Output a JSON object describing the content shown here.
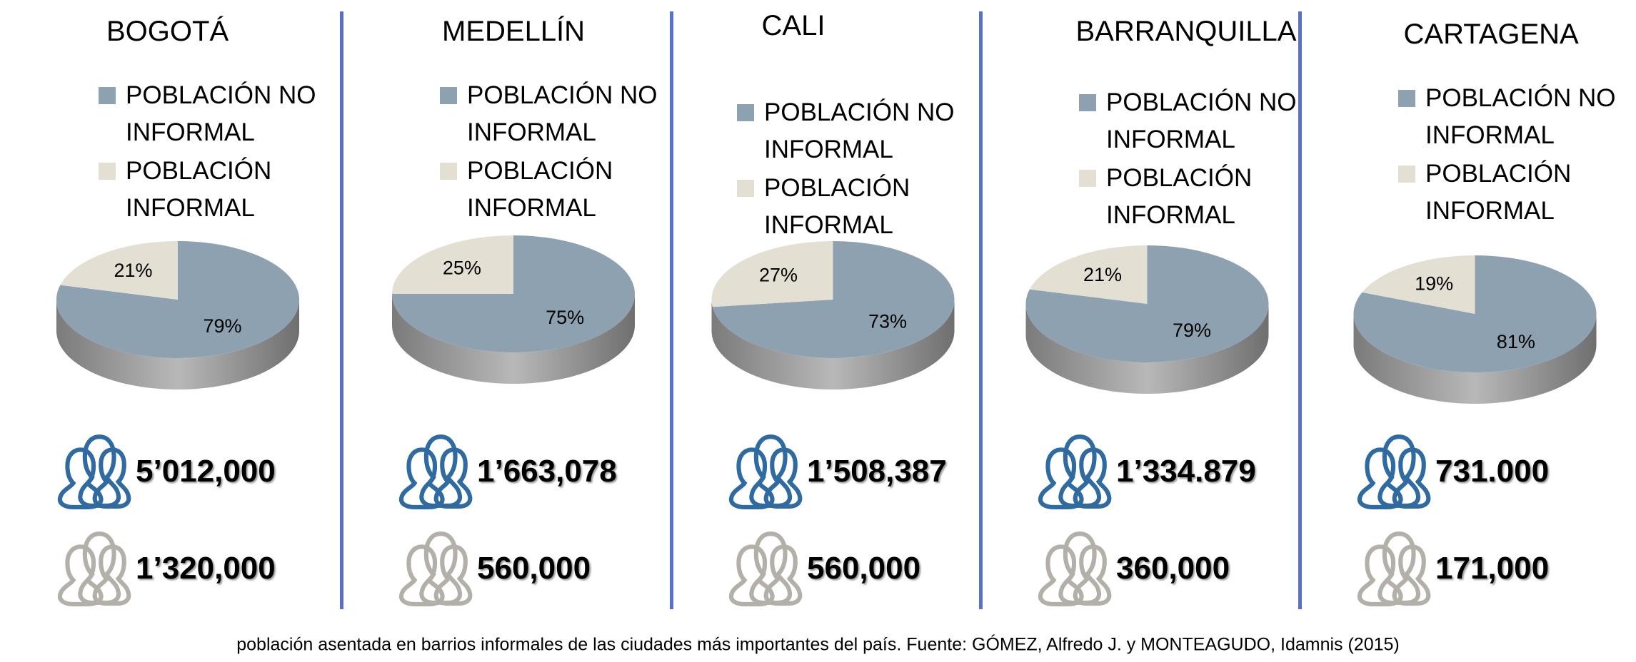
{
  "chart_data": [
    {
      "type": "pie",
      "title": "BOGOTÁ",
      "categories": [
        "POBLACIÓN NO INFORMAL",
        "POBLACIÓN INFORMAL"
      ],
      "values": [
        79,
        21
      ],
      "value_labels": [
        "79%",
        "21%"
      ],
      "colors": [
        "#8da1b0",
        "#e3e0d3"
      ]
    },
    {
      "type": "pie",
      "title": "MEDELLÍN",
      "categories": [
        "POBLACIÓN NO INFORMAL",
        "POBLACIÓN INFORMAL"
      ],
      "values": [
        75,
        25
      ],
      "value_labels": [
        "75%",
        "25%"
      ],
      "colors": [
        "#8da1b0",
        "#e3e0d3"
      ]
    },
    {
      "type": "pie",
      "title": "CALI",
      "categories": [
        "POBLACIÓN NO INFORMAL",
        "POBLACIÓN INFORMAL"
      ],
      "values": [
        73,
        27
      ],
      "value_labels": [
        "73%",
        "27%"
      ],
      "colors": [
        "#8da1b0",
        "#e3e0d3"
      ]
    },
    {
      "type": "pie",
      "title": "BARRANQUILLA",
      "categories": [
        "POBLACIÓN NO INFORMAL",
        "POBLACIÓN INFORMAL"
      ],
      "values": [
        79,
        21
      ],
      "value_labels": [
        "79%",
        "21%"
      ],
      "colors": [
        "#8da1b0",
        "#e3e0d3"
      ]
    },
    {
      "type": "pie",
      "title": "CARTAGENA",
      "categories": [
        "POBLACIÓN NO INFORMAL",
        "POBLACIÓN INFORMAL"
      ],
      "values": [
        81,
        19
      ],
      "value_labels": [
        "81%",
        "19%"
      ],
      "colors": [
        "#8da1b0",
        "#e3e0d3"
      ]
    }
  ],
  "populations": [
    {
      "no_informal": "5’012,000",
      "informal": "1’320,000"
    },
    {
      "no_informal": "1’663,078",
      "informal": "560,000"
    },
    {
      "no_informal": "1’508,387",
      "informal": "560,000"
    },
    {
      "no_informal": "1’334.879",
      "informal": "360,000"
    },
    {
      "no_informal": "731.000",
      "informal": "171,000"
    }
  ],
  "caption": "población asentada en barrios informales de las ciudades más importantes del país. Fuente: GÓMEZ, Alfredo J. y MONTEAGUDO, Idamnis (2015)"
}
